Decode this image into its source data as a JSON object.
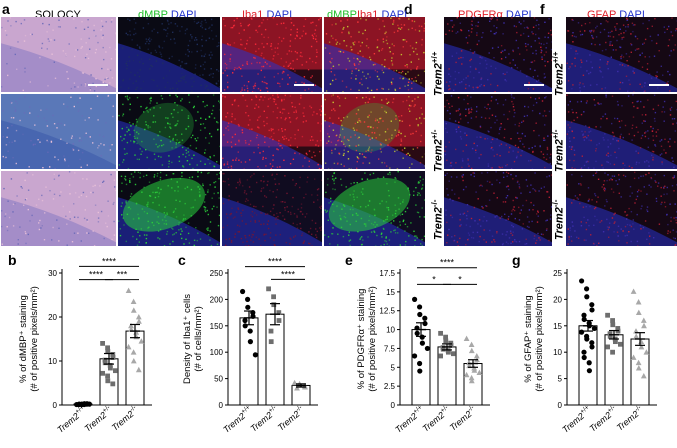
{
  "panel_labels": {
    "a": "a",
    "b": "b",
    "c": "c",
    "d": "d",
    "e": "e",
    "f": "f",
    "g": "g"
  },
  "column_titles": {
    "solocy": "SOLOCY",
    "dmbp_1": "dMBP",
    "dapi_1": "DAPI",
    "iba1_1": "Iba1",
    "dapi_2": "DAPI",
    "dmbp_2": "dMBP",
    "iba1_2": "Iba1",
    "dapi_3": "DAPI",
    "pdgfr": "PDGFRα",
    "dapi_4": "DAPI",
    "gfap": "GFAP",
    "dapi_5": "DAPI"
  },
  "genotypes": [
    {
      "gene": "Trem2",
      "sup": "+/+"
    },
    {
      "gene": "Trem2",
      "sup": "+/-"
    },
    {
      "gene": "Trem2",
      "sup": "-/-"
    }
  ],
  "colors": {
    "green": "#1fbf2a",
    "blue": "#2233cc",
    "red": "#e0202a",
    "gray": "#9a9a9a"
  },
  "chart_data": [
    {
      "id": "b",
      "type": "bar",
      "ylabel_lines": [
        "% of dMBP⁺ staining",
        "(# of positive pixels/mm²)"
      ],
      "categories": [
        "Trem2+/+",
        "Trem2+/-",
        "Trem2-/-"
      ],
      "cat_gene": "Trem2",
      "cat_sups": [
        "+/+",
        "+/-",
        "-/-"
      ],
      "means": [
        0.2,
        10.5,
        16.8
      ],
      "errors": [
        0.1,
        1.2,
        1.5
      ],
      "yticks": [
        0,
        10,
        20,
        30
      ],
      "ylim": [
        0,
        30
      ],
      "markers": [
        "circle",
        "square",
        "triangle"
      ],
      "points": [
        [
          0.1,
          0.1,
          0.2,
          0.2,
          0.3,
          0.1,
          0.2,
          0.1,
          0.3,
          0.2
        ],
        [
          14.0,
          13.0,
          12.2,
          11.5,
          10.8,
          10.2,
          9.6,
          9.0,
          8.4,
          7.8,
          7.2,
          6.6,
          5.5,
          4.8
        ],
        [
          26.0,
          23.5,
          21.5,
          20.0,
          19.0,
          18.0,
          17.2,
          16.5,
          15.5,
          14.5,
          13.2,
          12.0,
          10.0,
          8.0
        ]
      ],
      "sig": [
        {
          "from": 0,
          "to": 2,
          "label": "****",
          "y": 31.5
        },
        {
          "from": 0,
          "to": 1,
          "label": "****",
          "y": 28.5
        },
        {
          "from": 1,
          "to": 2,
          "label": "***",
          "y": 28.5
        }
      ]
    },
    {
      "id": "c",
      "type": "bar",
      "ylabel_lines": [
        "Density of Iba1⁺ cells",
        "(# of cells/mm²)"
      ],
      "categories": [
        "Trem2+/+",
        "Trem2+/-",
        "Trem2-/-"
      ],
      "cat_gene": "Trem2",
      "cat_sups": [
        "+/+",
        "+/-",
        "-/-"
      ],
      "means": [
        165,
        172,
        37
      ],
      "errors": [
        13,
        20,
        3
      ],
      "yticks": [
        0,
        50,
        100,
        150,
        200,
        250
      ],
      "ylim": [
        0,
        250
      ],
      "markers": [
        "circle",
        "square",
        "triangle"
      ],
      "points": [
        [
          215,
          200,
          185,
          175,
          168,
          160,
          150,
          140,
          120,
          95
        ],
        [
          220,
          205,
          190,
          175,
          160,
          140,
          120
        ],
        [
          42,
          40,
          38,
          36,
          34,
          32
        ]
      ],
      "sig": [
        {
          "from": 0,
          "to": 2,
          "label": "****",
          "y": 262
        },
        {
          "from": 1,
          "to": 2,
          "label": "****",
          "y": 238
        }
      ]
    },
    {
      "id": "e",
      "type": "bar",
      "ylabel_lines": [
        "% of PDGFRα⁺ staining",
        "(# of positive pixels/mm²)"
      ],
      "categories": [
        "Trem2+/+",
        "Trem2+/-",
        "Trem2-/-"
      ],
      "cat_gene": "Trem2",
      "cat_sups": [
        "+/+",
        "+/-",
        "-/-"
      ],
      "means": [
        10.0,
        7.7,
        5.5
      ],
      "errors": [
        0.9,
        0.4,
        0.5
      ],
      "yticks": [
        0,
        2.5,
        5,
        7.5,
        10,
        12.5,
        15,
        17.5
      ],
      "ylim": [
        0,
        17.5
      ],
      "markers": [
        "circle",
        "square",
        "triangle"
      ],
      "points": [
        [
          14.0,
          13.0,
          12.0,
          11.5,
          10.8,
          10.2,
          9.5,
          9.0,
          8.2,
          7.5,
          6.5,
          5.5,
          4.5
        ],
        [
          9.5,
          9.0,
          8.5,
          8.2,
          7.9,
          7.6,
          7.4,
          7.2,
          7.0,
          6.8,
          6.5
        ],
        [
          8.8,
          8.0,
          7.2,
          6.5,
          6.0,
          5.6,
          5.2,
          4.9,
          4.6,
          4.3,
          4.0,
          3.6,
          3.2
        ]
      ],
      "sig": [
        {
          "from": 0,
          "to": 2,
          "label": "****",
          "y": 18.2
        },
        {
          "from": 0,
          "to": 1,
          "label": "*",
          "y": 16.0
        },
        {
          "from": 1,
          "to": 2,
          "label": "*",
          "y": 16.0
        }
      ]
    },
    {
      "id": "g",
      "type": "bar",
      "ylabel_lines": [
        "% of GFAP⁺ staining",
        "(# of positive pixels/mm²)"
      ],
      "categories": [
        "Trem2+/+",
        "Trem2+/-",
        "Trem2-/-"
      ],
      "cat_gene": "Trem2",
      "cat_sups": [
        "+/+",
        "+/-",
        "-/-"
      ],
      "means": [
        15.0,
        13.3,
        12.5
      ],
      "errors": [
        1.0,
        0.8,
        1.2
      ],
      "yticks": [
        0,
        5,
        10,
        15,
        20,
        25
      ],
      "ylim": [
        0,
        25
      ],
      "markers": [
        "circle",
        "square",
        "triangle"
      ],
      "points": [
        [
          23.5,
          22.0,
          20.5,
          19.0,
          18.0,
          17.0,
          16.2,
          15.5,
          15.0,
          14.5,
          13.8,
          13.0,
          12.5,
          11.8,
          11.0,
          10.0,
          9.0,
          8.0,
          6.5
        ],
        [
          17.0,
          16.0,
          15.2,
          14.5,
          14.0,
          13.5,
          13.0,
          12.5,
          12.0,
          11.5,
          11.0,
          10.0
        ],
        [
          21.5,
          19.5,
          17.5,
          16.0,
          15.0,
          14.0,
          13.0,
          12.0,
          11.0,
          10.0,
          9.0,
          8.0,
          7.0,
          5.5
        ]
      ],
      "sig": []
    }
  ]
}
